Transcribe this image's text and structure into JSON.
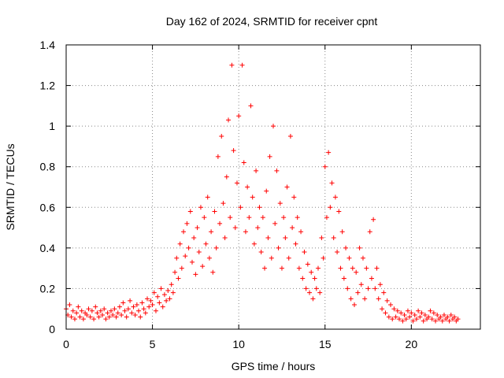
{
  "chart_data": {
    "type": "scatter",
    "title": "Day 162 of 2024, SRMTID for receiver cpnt",
    "xlabel": "GPS time / hours",
    "ylabel": "SRMTID / TECUs",
    "xlim": [
      0,
      24
    ],
    "ylim": [
      0,
      1.4
    ],
    "xticks": [
      0,
      5,
      10,
      15,
      20
    ],
    "xtick_labels": [
      "0",
      "5",
      "10",
      "15",
      "20"
    ],
    "yticks": [
      0,
      0.2,
      0.4,
      0.6,
      0.8,
      1,
      1.2,
      1.4
    ],
    "ytick_labels": [
      "0",
      "0.2",
      "0.4",
      "0.6",
      "0.8",
      "1",
      "1.2",
      "1.4"
    ],
    "grid": true,
    "marker": "+",
    "series_color": "#ff0000",
    "series": [
      {
        "name": "SRMTID",
        "points": [
          [
            0.0,
            0.1
          ],
          [
            0.1,
            0.07
          ],
          [
            0.2,
            0.12
          ],
          [
            0.3,
            0.06
          ],
          [
            0.4,
            0.09
          ],
          [
            0.5,
            0.05
          ],
          [
            0.6,
            0.08
          ],
          [
            0.7,
            0.11
          ],
          [
            0.8,
            0.06
          ],
          [
            0.9,
            0.09
          ],
          [
            1.0,
            0.05
          ],
          [
            1.1,
            0.08
          ],
          [
            1.2,
            0.07
          ],
          [
            1.3,
            0.1
          ],
          [
            1.4,
            0.06
          ],
          [
            1.5,
            0.09
          ],
          [
            1.6,
            0.05
          ],
          [
            1.7,
            0.11
          ],
          [
            1.8,
            0.08
          ],
          [
            1.9,
            0.06
          ],
          [
            2.0,
            0.09
          ],
          [
            2.1,
            0.07
          ],
          [
            2.2,
            0.1
          ],
          [
            2.3,
            0.05
          ],
          [
            2.4,
            0.08
          ],
          [
            2.5,
            0.06
          ],
          [
            2.6,
            0.09
          ],
          [
            2.7,
            0.07
          ],
          [
            2.8,
            0.1
          ],
          [
            2.9,
            0.06
          ],
          [
            3.0,
            0.08
          ],
          [
            3.1,
            0.11
          ],
          [
            3.2,
            0.07
          ],
          [
            3.3,
            0.13
          ],
          [
            3.4,
            0.09
          ],
          [
            3.5,
            0.06
          ],
          [
            3.6,
            0.1
          ],
          [
            3.7,
            0.14
          ],
          [
            3.8,
            0.08
          ],
          [
            3.9,
            0.11
          ],
          [
            4.0,
            0.07
          ],
          [
            4.1,
            0.12
          ],
          [
            4.2,
            0.09
          ],
          [
            4.3,
            0.06
          ],
          [
            4.4,
            0.13
          ],
          [
            4.5,
            0.1
          ],
          [
            4.6,
            0.08
          ],
          [
            4.7,
            0.15
          ],
          [
            4.8,
            0.11
          ],
          [
            4.9,
            0.14
          ],
          [
            5.0,
            0.12
          ],
          [
            5.1,
            0.18
          ],
          [
            5.2,
            0.09
          ],
          [
            5.3,
            0.16
          ],
          [
            5.4,
            0.13
          ],
          [
            5.5,
            0.2
          ],
          [
            5.6,
            0.11
          ],
          [
            5.7,
            0.17
          ],
          [
            5.8,
            0.14
          ],
          [
            5.9,
            0.19
          ],
          [
            6.0,
            0.15
          ],
          [
            6.1,
            0.22
          ],
          [
            6.2,
            0.18
          ],
          [
            6.3,
            0.28
          ],
          [
            6.4,
            0.35
          ],
          [
            6.5,
            0.25
          ],
          [
            6.6,
            0.42
          ],
          [
            6.7,
            0.3
          ],
          [
            6.8,
            0.48
          ],
          [
            6.9,
            0.36
          ],
          [
            7.0,
            0.52
          ],
          [
            7.1,
            0.4
          ],
          [
            7.2,
            0.58
          ],
          [
            7.3,
            0.33
          ],
          [
            7.4,
            0.45
          ],
          [
            7.5,
            0.27
          ],
          [
            7.6,
            0.5
          ],
          [
            7.7,
            0.38
          ],
          [
            7.8,
            0.6
          ],
          [
            7.9,
            0.31
          ],
          [
            8.0,
            0.55
          ],
          [
            8.1,
            0.42
          ],
          [
            8.2,
            0.65
          ],
          [
            8.3,
            0.35
          ],
          [
            8.4,
            0.48
          ],
          [
            8.5,
            0.28
          ],
          [
            8.6,
            0.58
          ],
          [
            8.7,
            0.4
          ],
          [
            8.8,
            0.85
          ],
          [
            8.9,
            0.52
          ],
          [
            9.0,
            0.95
          ],
          [
            9.1,
            0.62
          ],
          [
            9.2,
            0.45
          ],
          [
            9.3,
            0.75
          ],
          [
            9.4,
            1.03
          ],
          [
            9.5,
            0.55
          ],
          [
            9.6,
            1.3
          ],
          [
            9.7,
            0.88
          ],
          [
            9.8,
            0.5
          ],
          [
            9.9,
            0.72
          ],
          [
            10.0,
            1.05
          ],
          [
            10.1,
            0.6
          ],
          [
            10.2,
            1.3
          ],
          [
            10.3,
            0.82
          ],
          [
            10.4,
            0.48
          ],
          [
            10.5,
            0.7
          ],
          [
            10.6,
            0.55
          ],
          [
            10.7,
            1.1
          ],
          [
            10.8,
            0.65
          ],
          [
            10.9,
            0.42
          ],
          [
            11.0,
            0.78
          ],
          [
            11.1,
            0.5
          ],
          [
            11.2,
            0.6
          ],
          [
            11.3,
            0.38
          ],
          [
            11.4,
            0.55
          ],
          [
            11.5,
            0.3
          ],
          [
            11.6,
            0.68
          ],
          [
            11.7,
            0.45
          ],
          [
            11.8,
            0.85
          ],
          [
            11.9,
            0.35
          ],
          [
            12.0,
            1.0
          ],
          [
            12.1,
            0.52
          ],
          [
            12.2,
            0.78
          ],
          [
            12.3,
            0.4
          ],
          [
            12.4,
            0.62
          ],
          [
            12.5,
            0.3
          ],
          [
            12.6,
            0.55
          ],
          [
            12.7,
            0.45
          ],
          [
            12.8,
            0.7
          ],
          [
            12.9,
            0.35
          ],
          [
            13.0,
            0.95
          ],
          [
            13.1,
            0.5
          ],
          [
            13.2,
            0.65
          ],
          [
            13.3,
            0.42
          ],
          [
            13.4,
            0.55
          ],
          [
            13.5,
            0.3
          ],
          [
            13.6,
            0.48
          ],
          [
            13.7,
            0.25
          ],
          [
            13.8,
            0.38
          ],
          [
            13.9,
            0.2
          ],
          [
            14.0,
            0.32
          ],
          [
            14.1,
            0.18
          ],
          [
            14.2,
            0.28
          ],
          [
            14.3,
            0.15
          ],
          [
            14.4,
            0.25
          ],
          [
            14.5,
            0.2
          ],
          [
            14.6,
            0.3
          ],
          [
            14.7,
            0.18
          ],
          [
            14.8,
            0.45
          ],
          [
            14.9,
            0.35
          ],
          [
            15.0,
            0.8
          ],
          [
            15.1,
            0.55
          ],
          [
            15.2,
            0.87
          ],
          [
            15.3,
            0.6
          ],
          [
            15.4,
            0.72
          ],
          [
            15.5,
            0.45
          ],
          [
            15.6,
            0.65
          ],
          [
            15.7,
            0.38
          ],
          [
            15.8,
            0.58
          ],
          [
            15.9,
            0.3
          ],
          [
            16.0,
            0.48
          ],
          [
            16.1,
            0.25
          ],
          [
            16.2,
            0.4
          ],
          [
            16.3,
            0.2
          ],
          [
            16.4,
            0.35
          ],
          [
            16.5,
            0.15
          ],
          [
            16.6,
            0.3
          ],
          [
            16.7,
            0.12
          ],
          [
            16.8,
            0.28
          ],
          [
            16.9,
            0.18
          ],
          [
            17.0,
            0.4
          ],
          [
            17.1,
            0.22
          ],
          [
            17.2,
            0.35
          ],
          [
            17.3,
            0.15
          ],
          [
            17.4,
            0.3
          ],
          [
            17.5,
            0.2
          ],
          [
            17.6,
            0.48
          ],
          [
            17.7,
            0.25
          ],
          [
            17.8,
            0.54
          ],
          [
            17.9,
            0.2
          ],
          [
            18.0,
            0.3
          ],
          [
            18.1,
            0.15
          ],
          [
            18.2,
            0.22
          ],
          [
            18.3,
            0.1
          ],
          [
            18.4,
            0.18
          ],
          [
            18.5,
            0.08
          ],
          [
            18.6,
            0.14
          ],
          [
            18.7,
            0.06
          ],
          [
            18.8,
            0.12
          ],
          [
            18.9,
            0.05
          ],
          [
            19.0,
            0.1
          ],
          [
            19.1,
            0.06
          ],
          [
            19.2,
            0.09
          ],
          [
            19.3,
            0.05
          ],
          [
            19.4,
            0.08
          ],
          [
            19.5,
            0.04
          ],
          [
            19.6,
            0.07
          ],
          [
            19.7,
            0.05
          ],
          [
            19.8,
            0.09
          ],
          [
            19.9,
            0.06
          ],
          [
            20.0,
            0.08
          ],
          [
            20.1,
            0.04
          ],
          [
            20.2,
            0.07
          ],
          [
            20.3,
            0.05
          ],
          [
            20.4,
            0.09
          ],
          [
            20.5,
            0.06
          ],
          [
            20.6,
            0.08
          ],
          [
            20.7,
            0.04
          ],
          [
            20.8,
            0.07
          ],
          [
            20.9,
            0.05
          ],
          [
            21.0,
            0.06
          ],
          [
            21.1,
            0.09
          ],
          [
            21.2,
            0.05
          ],
          [
            21.3,
            0.08
          ],
          [
            21.4,
            0.04
          ],
          [
            21.5,
            0.07
          ],
          [
            21.6,
            0.05
          ],
          [
            21.7,
            0.06
          ],
          [
            21.8,
            0.04
          ],
          [
            21.9,
            0.07
          ],
          [
            22.0,
            0.05
          ],
          [
            22.1,
            0.06
          ],
          [
            22.2,
            0.04
          ],
          [
            22.3,
            0.07
          ],
          [
            22.4,
            0.05
          ],
          [
            22.5,
            0.06
          ],
          [
            22.6,
            0.04
          ],
          [
            22.7,
            0.05
          ]
        ]
      }
    ]
  }
}
